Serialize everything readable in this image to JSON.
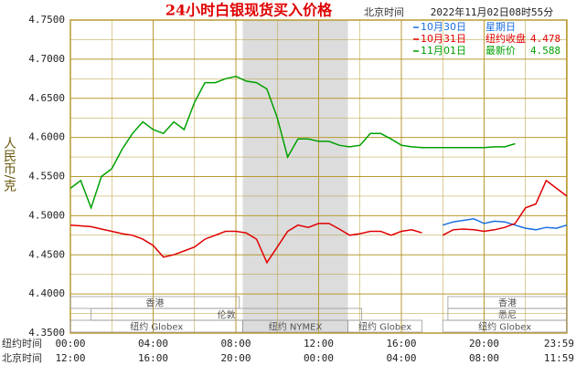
{
  "chart_data": {
    "type": "line",
    "title": "24小时白银现货买入价格",
    "time_zone_label": "北京时间",
    "timestamp": "2022年11月02日08时55分",
    "y_label": "人民币/克",
    "x_row_labels": [
      "纽约时间",
      "北京时间"
    ],
    "xlim": [
      0,
      1440
    ],
    "xticks": [
      {
        "value": 0,
        "label": "00:00"
      },
      {
        "value": 240,
        "label": "04:00"
      },
      {
        "value": 480,
        "label": "08:00"
      },
      {
        "value": 720,
        "label": "12:00"
      },
      {
        "value": 960,
        "label": "16:00"
      },
      {
        "value": 1200,
        "label": "20:00"
      },
      {
        "value": 1439,
        "label": "23:59"
      }
    ],
    "x2ticklabels": [
      "12:00",
      "16:00",
      "20:00",
      "00:00",
      "04:00",
      "08:00",
      "11:59"
    ],
    "ylim": [
      4.35,
      4.75
    ],
    "yticks": [
      {
        "value": 4.75,
        "label": "4.7500"
      },
      {
        "value": 4.7,
        "label": "4.7000"
      },
      {
        "value": 4.65,
        "label": "4.6500"
      },
      {
        "value": 4.6,
        "label": "4.6000"
      },
      {
        "value": 4.55,
        "label": "4.5500"
      },
      {
        "value": 4.5,
        "label": "4.5000"
      },
      {
        "value": 4.45,
        "label": "4.4500"
      },
      {
        "value": 4.4,
        "label": "4.4000"
      },
      {
        "value": 4.35,
        "label": "4.3500"
      }
    ],
    "grid": true,
    "x": [
      0,
      30,
      60,
      90,
      120,
      150,
      180,
      210,
      240,
      270,
      300,
      330,
      360,
      390,
      420,
      450,
      480,
      510,
      540,
      570,
      600,
      630,
      660,
      690,
      720,
      750,
      780,
      810,
      840,
      870,
      900,
      930,
      960,
      990,
      1020,
      1050,
      1080,
      1110,
      1140,
      1170,
      1200,
      1230,
      1260,
      1290,
      1320,
      1350,
      1380,
      1410,
      1440
    ],
    "series": [
      {
        "name": "10月30日",
        "note": "星期日",
        "color": "#1a6ee0",
        "values": [
          null,
          null,
          null,
          null,
          null,
          null,
          null,
          null,
          null,
          null,
          null,
          null,
          null,
          null,
          null,
          null,
          null,
          null,
          null,
          null,
          null,
          null,
          null,
          null,
          null,
          null,
          null,
          null,
          null,
          null,
          null,
          null,
          null,
          null,
          null,
          null,
          4.488,
          4.492,
          4.494,
          4.496,
          4.49,
          4.493,
          4.492,
          4.488,
          4.484,
          4.482,
          4.485,
          4.484,
          4.488
        ]
      },
      {
        "name": "10月31日",
        "note": "纽约收盘",
        "note_value": 4.478,
        "color": "#e00000",
        "values": [
          4.488,
          4.487,
          4.486,
          4.483,
          4.48,
          4.477,
          4.475,
          4.47,
          4.462,
          4.447,
          4.45,
          4.455,
          4.46,
          4.47,
          4.475,
          4.48,
          4.48,
          4.478,
          4.47,
          4.44,
          4.46,
          4.48,
          4.488,
          4.485,
          4.49,
          4.49,
          4.483,
          4.475,
          4.477,
          4.48,
          4.48,
          4.475,
          4.48,
          4.482,
          4.478,
          null,
          4.475,
          4.482,
          4.483,
          4.482,
          4.48,
          4.482,
          4.485,
          4.49,
          4.51,
          4.515,
          4.545,
          4.535,
          4.525
        ]
      },
      {
        "name": "11月01日",
        "note": "最新价",
        "note_value": 4.588,
        "color": "#00a000",
        "values": [
          4.535,
          4.545,
          4.51,
          4.55,
          4.56,
          4.585,
          4.605,
          4.62,
          4.61,
          4.605,
          4.62,
          4.61,
          4.645,
          4.67,
          4.67,
          4.675,
          4.678,
          4.672,
          4.67,
          4.662,
          4.625,
          4.575,
          4.598,
          4.598,
          4.595,
          4.595,
          4.59,
          4.588,
          4.59,
          4.605,
          4.605,
          4.598,
          4.59,
          4.588,
          4.587,
          4.587,
          4.587,
          4.587,
          4.587,
          4.587,
          4.587,
          4.588,
          4.588,
          4.592,
          null,
          null,
          null,
          null,
          null
        ]
      }
    ],
    "sessions": [
      {
        "label": "香港",
        "row": 0,
        "start": 0,
        "end": 490
      },
      {
        "label": "香港",
        "row": 0,
        "start": 1095,
        "end": 1440
      },
      {
        "label": "伦敦",
        "row": 1,
        "start": 60,
        "end": 845
      },
      {
        "label": "悉尼",
        "row": 1,
        "start": 1095,
        "end": 1440
      },
      {
        "label": "纽约 Globex",
        "row": 2,
        "start": 0,
        "end": 500
      },
      {
        "label": "纽约 NYMEX",
        "row": 2,
        "start": 500,
        "end": 805,
        "highlight": true
      },
      {
        "label": "纽约 Globex",
        "row": 2,
        "start": 805,
        "end": 1020
      },
      {
        "label": "纽约 Globex",
        "row": 2,
        "start": 1080,
        "end": 1440
      }
    ]
  }
}
